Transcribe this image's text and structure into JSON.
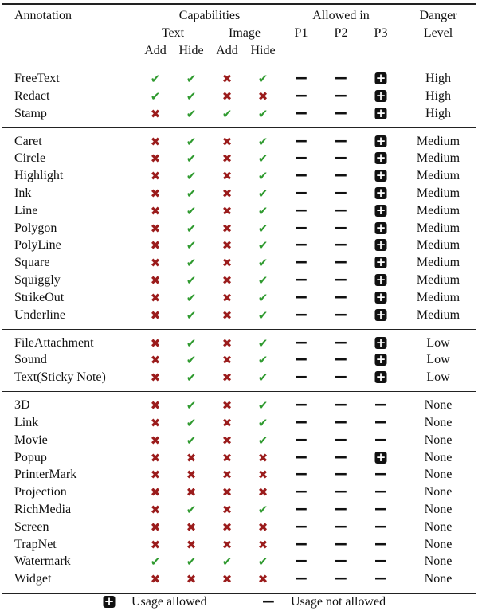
{
  "header": {
    "annotation": "Annotation",
    "capabilities": "Capabilities",
    "text": "Text",
    "image": "Image",
    "text_add": "Add",
    "text_hide": "Hide",
    "image_add": "Add",
    "image_hide": "Hide",
    "allowed_in": "Allowed in",
    "p1": "P1",
    "p2": "P2",
    "p3": "P3",
    "danger": "Danger",
    "level": "Level"
  },
  "symbol_colors": {
    "✔": "#2f9a2f",
    "✖": "#9b1c1c"
  },
  "boxed_symbol": "+",
  "groups": [
    {
      "rows": [
        [
          "FreeText",
          "✔",
          "✔",
          "✖",
          "✔",
          "−",
          "−",
          "+",
          "High"
        ],
        [
          "Redact",
          "✔",
          "✔",
          "✖",
          "✖",
          "−",
          "−",
          "+",
          "High"
        ],
        [
          "Stamp",
          "✖",
          "✔",
          "✔",
          "✔",
          "−",
          "−",
          "+",
          "High"
        ]
      ]
    },
    {
      "rows": [
        [
          "Caret",
          "✖",
          "✔",
          "✖",
          "✔",
          "−",
          "−",
          "+",
          "Medium"
        ],
        [
          "Circle",
          "✖",
          "✔",
          "✖",
          "✔",
          "−",
          "−",
          "+",
          "Medium"
        ],
        [
          "Highlight",
          "✖",
          "✔",
          "✖",
          "✔",
          "−",
          "−",
          "+",
          "Medium"
        ],
        [
          "Ink",
          "✖",
          "✔",
          "✖",
          "✔",
          "−",
          "−",
          "+",
          "Medium"
        ],
        [
          "Line",
          "✖",
          "✔",
          "✖",
          "✔",
          "−",
          "−",
          "+",
          "Medium"
        ],
        [
          "Polygon",
          "✖",
          "✔",
          "✖",
          "✔",
          "−",
          "−",
          "+",
          "Medium"
        ],
        [
          "PolyLine",
          "✖",
          "✔",
          "✖",
          "✔",
          "−",
          "−",
          "+",
          "Medium"
        ],
        [
          "Square",
          "✖",
          "✔",
          "✖",
          "✔",
          "−",
          "−",
          "+",
          "Medium"
        ],
        [
          "Squiggly",
          "✖",
          "✔",
          "✖",
          "✔",
          "−",
          "−",
          "+",
          "Medium"
        ],
        [
          "StrikeOut",
          "✖",
          "✔",
          "✖",
          "✔",
          "−",
          "−",
          "+",
          "Medium"
        ],
        [
          "Underline",
          "✖",
          "✔",
          "✖",
          "✔",
          "−",
          "−",
          "+",
          "Medium"
        ]
      ]
    },
    {
      "rows": [
        [
          "FileAttachment",
          "✖",
          "✔",
          "✖",
          "✔",
          "−",
          "−",
          "+",
          "Low"
        ],
        [
          "Sound",
          "✖",
          "✔",
          "✖",
          "✔",
          "−",
          "−",
          "+",
          "Low"
        ],
        [
          "Text(Sticky Note)",
          "✖",
          "✔",
          "✖",
          "✔",
          "−",
          "−",
          "+",
          "Low"
        ]
      ]
    },
    {
      "rows": [
        [
          "3D",
          "✖",
          "✔",
          "✖",
          "✔",
          "−",
          "−",
          "−",
          "None"
        ],
        [
          "Link",
          "✖",
          "✔",
          "✖",
          "✔",
          "−",
          "−",
          "−",
          "None"
        ],
        [
          "Movie",
          "✖",
          "✔",
          "✖",
          "✔",
          "−",
          "−",
          "−",
          "None"
        ],
        [
          "Popup",
          "✖",
          "✖",
          "✖",
          "✖",
          "−",
          "−",
          "+",
          "None"
        ],
        [
          "PrinterMark",
          "✖",
          "✖",
          "✖",
          "✖",
          "−",
          "−",
          "−",
          "None"
        ],
        [
          "Projection",
          "✖",
          "✖",
          "✖",
          "✖",
          "−",
          "−",
          "−",
          "None"
        ],
        [
          "RichMedia",
          "✖",
          "✔",
          "✖",
          "✔",
          "−",
          "−",
          "−",
          "None"
        ],
        [
          "Screen",
          "✖",
          "✖",
          "✖",
          "✖",
          "−",
          "−",
          "−",
          "None"
        ],
        [
          "TrapNet",
          "✖",
          "✖",
          "✖",
          "✖",
          "−",
          "−",
          "−",
          "None"
        ],
        [
          "Watermark",
          "✔",
          "✔",
          "✔",
          "✔",
          "−",
          "−",
          "−",
          "None"
        ],
        [
          "Widget",
          "✖",
          "✖",
          "✖",
          "✖",
          "−",
          "−",
          "−",
          "None"
        ]
      ]
    }
  ],
  "legend": [
    {
      "symbol": "+",
      "label": "Usage allowed"
    },
    {
      "symbol": "−",
      "label": "Usage not allowed"
    }
  ]
}
